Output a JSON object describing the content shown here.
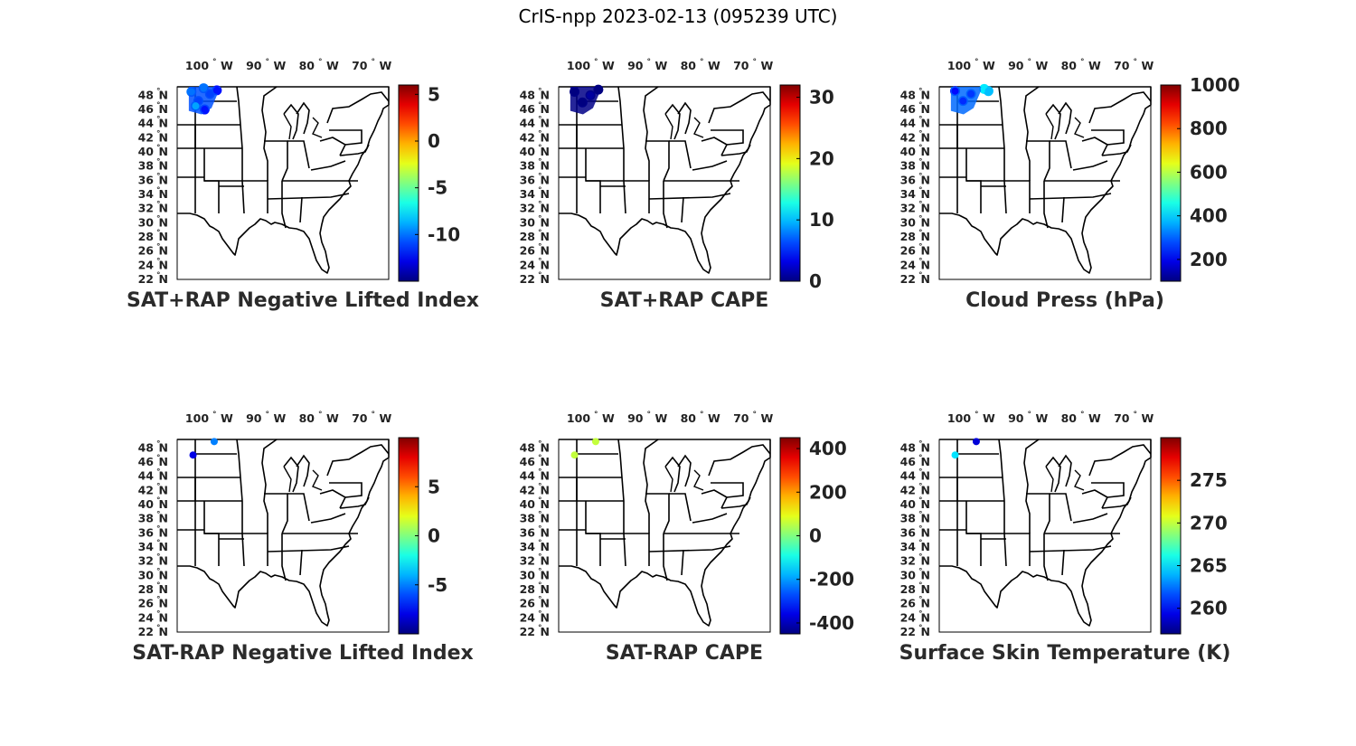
{
  "title": "CrIS-npp 2023-02-13 (095239 UTC)",
  "map": {
    "lon_ticks": [
      "100",
      "90",
      "80",
      "70"
    ],
    "lon_suffix": "W",
    "lat_ticks": [
      "48",
      "46",
      "44",
      "42",
      "40",
      "38",
      "36",
      "34",
      "32",
      "30",
      "28",
      "26",
      "24",
      "22"
    ],
    "lat_suffix": "N",
    "degree_symbol": "°"
  },
  "panels": [
    {
      "title": "SAT+RAP Negative Lifted Index",
      "colorbar_ticks": [
        "5",
        "0",
        "-5",
        "-10"
      ],
      "colorbar_range": [
        -15,
        6
      ],
      "colorbar_tick_values": [
        5,
        0,
        -5,
        -10
      ],
      "obs_pattern": "swath",
      "obs_points": [
        {
          "lon": -103.8,
          "lat": 48.5,
          "value": -10
        },
        {
          "lon": -102.5,
          "lat": 47.2,
          "value": -11
        },
        {
          "lon": -103.0,
          "lat": 46.5,
          "value": -9
        },
        {
          "lon": -101.3,
          "lat": 46.0,
          "value": -12
        },
        {
          "lon": -100.3,
          "lat": 48.2,
          "value": -11
        },
        {
          "lon": -99.0,
          "lat": 48.7,
          "value": -12
        },
        {
          "lon": -101.5,
          "lat": 49.0,
          "value": -10
        }
      ]
    },
    {
      "title": "SAT+RAP CAPE",
      "colorbar_ticks": [
        "30",
        "20",
        "10",
        "0"
      ],
      "colorbar_range": [
        0,
        32
      ],
      "colorbar_tick_values": [
        30,
        20,
        10,
        0
      ],
      "obs_pattern": "swath",
      "obs_points": [
        {
          "lon": -103.5,
          "lat": 48.5,
          "value": 0
        },
        {
          "lon": -102.0,
          "lat": 47.0,
          "value": 0
        },
        {
          "lon": -100.5,
          "lat": 48.0,
          "value": 1
        },
        {
          "lon": -99.0,
          "lat": 48.8,
          "value": 0
        }
      ]
    },
    {
      "title": "Cloud Press (hPa)",
      "colorbar_ticks": [
        "1000",
        "800",
        "600",
        "400",
        "200"
      ],
      "colorbar_range": [
        100,
        1000
      ],
      "colorbar_tick_values": [
        1000,
        800,
        600,
        400,
        200
      ],
      "obs_pattern": "swath",
      "obs_points": [
        {
          "lon": -103.5,
          "lat": 48.6,
          "value": 220
        },
        {
          "lon": -102.0,
          "lat": 47.2,
          "value": 250
        },
        {
          "lon": -100.5,
          "lat": 48.2,
          "value": 260
        },
        {
          "lon": -98.0,
          "lat": 48.9,
          "value": 420
        },
        {
          "lon": -97.2,
          "lat": 48.6,
          "value": 380
        }
      ]
    },
    {
      "title": "SAT-RAP Negative Lifted Index",
      "colorbar_ticks": [
        "5",
        "0",
        "-5"
      ],
      "colorbar_range": [
        -10,
        10
      ],
      "colorbar_tick_values": [
        5,
        0,
        -5
      ],
      "obs_pattern": "points",
      "obs_points": [
        {
          "lon": -103.5,
          "lat": 47.0,
          "value": -8
        },
        {
          "lon": -99.5,
          "lat": 48.9,
          "value": -5
        }
      ]
    },
    {
      "title": "SAT-RAP CAPE",
      "colorbar_ticks": [
        "400",
        "200",
        "0",
        "-200",
        "-400"
      ],
      "colorbar_range": [
        -450,
        450
      ],
      "colorbar_tick_values": [
        400,
        200,
        0,
        -200,
        -400
      ],
      "obs_pattern": "points",
      "obs_points": [
        {
          "lon": -103.5,
          "lat": 47.0,
          "value": 60
        },
        {
          "lon": -99.5,
          "lat": 48.9,
          "value": 60
        }
      ]
    },
    {
      "title": "Surface Skin Temperature (K)",
      "colorbar_ticks": [
        "275",
        "270",
        "265",
        "260"
      ],
      "colorbar_range": [
        257,
        280
      ],
      "colorbar_tick_values": [
        275,
        270,
        265,
        260
      ],
      "obs_pattern": "points",
      "obs_points": [
        {
          "lon": -103.5,
          "lat": 47.0,
          "value": 265
        },
        {
          "lon": -99.5,
          "lat": 48.9,
          "value": 259
        }
      ]
    }
  ]
}
